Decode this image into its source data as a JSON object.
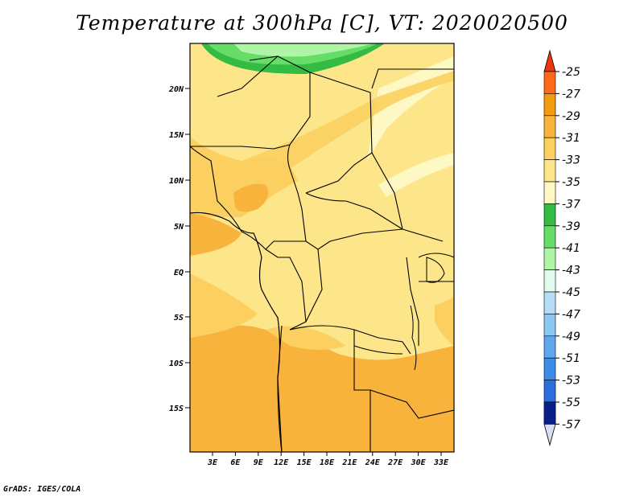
{
  "title": "Temperature at 300hPa [C], VT: 2020020500",
  "credit": "GrADS: IGES/COLA",
  "map": {
    "lat_ticks": [
      "20N",
      "15N",
      "10N",
      "5N",
      "EQ",
      "5S",
      "10S",
      "15S"
    ],
    "lon_ticks": [
      "3E",
      "6E",
      "9E",
      "12E",
      "15E",
      "18E",
      "21E",
      "24E",
      "27E",
      "30E",
      "33E"
    ]
  },
  "colorbar": {
    "levels": [
      {
        "label": "-25",
        "color": "#ff6a1a"
      },
      {
        "label": "-27",
        "color": "#f39c12"
      },
      {
        "label": "-29",
        "color": "#f8b33c"
      },
      {
        "label": "-31",
        "color": "#fbd060"
      },
      {
        "label": "-33",
        "color": "#fde68a"
      },
      {
        "label": "-35",
        "color": "#fef8c4"
      },
      {
        "label": "-37",
        "color": "#33bb44"
      },
      {
        "label": "-39",
        "color": "#66dd66"
      },
      {
        "label": "-41",
        "color": "#aef5a5"
      },
      {
        "label": "-43",
        "color": "#e2fbef"
      },
      {
        "label": "-45",
        "color": "#b7dcf7"
      },
      {
        "label": "-47",
        "color": "#8cc8f4"
      },
      {
        "label": "-49",
        "color": "#5fa8f0"
      },
      {
        "label": "-51",
        "color": "#3d8de8"
      },
      {
        "label": "-53",
        "color": "#2b6fdc"
      },
      {
        "label": "-55",
        "color": "#1c4fc2"
      },
      {
        "label": "-57",
        "color": "#0b1f8a"
      }
    ],
    "top_arrow_color": "#ee3311",
    "bottom_arrow_color": "#d9ddf5"
  }
}
